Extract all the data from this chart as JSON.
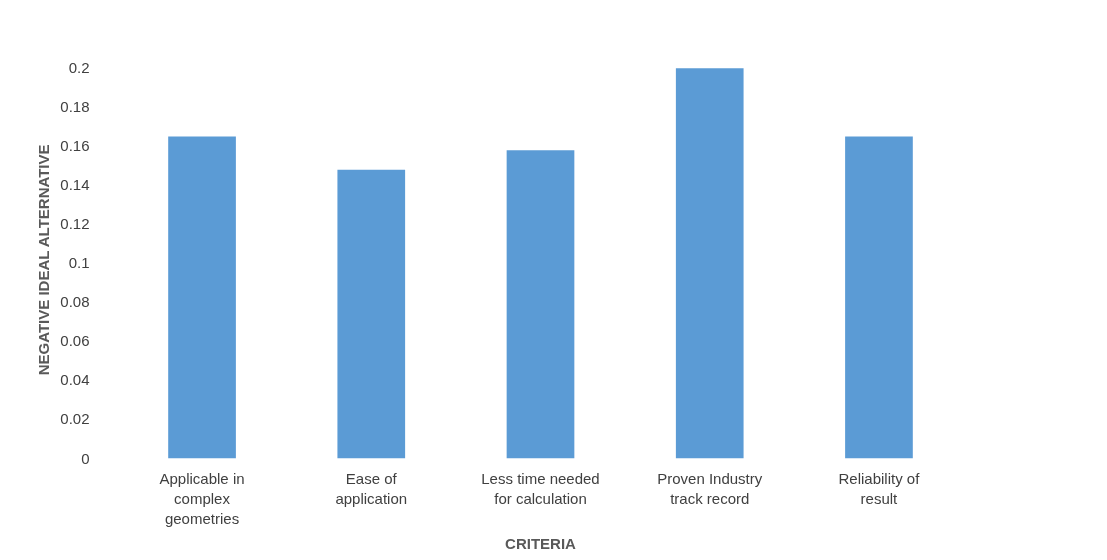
{
  "chart_data": {
    "type": "bar",
    "xlabel": "CRITERIA",
    "ylabel": "NEGATIVE IDEAL ALTERNATIVE",
    "categories": [
      "Applicable in complex geometries",
      "Ease of application",
      "Less time needed for calculation",
      "Proven Industry track record",
      "Reliability of result"
    ],
    "values": [
      0.165,
      0.148,
      0.158,
      0.2,
      0.165
    ],
    "color": "#5b9bd5",
    "ylim": [
      0,
      0.2
    ],
    "yticks": [
      0,
      0.02,
      0.04,
      0.06,
      0.08,
      0.1,
      0.12,
      0.14,
      0.16,
      0.18,
      0.2
    ],
    "grid": false
  }
}
